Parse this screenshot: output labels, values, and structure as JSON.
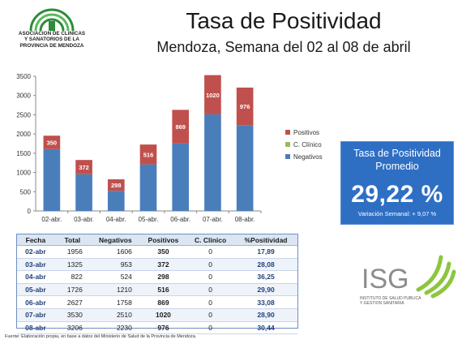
{
  "org": {
    "name_line1": "ASOCIACION DE CLINICAS",
    "name_line2": "Y SANATORIOS DE LA",
    "name_line3": "PROVINCIA DE MENDOZA"
  },
  "header": {
    "title": "Tasa de Positividad",
    "subtitle": "Mendoza, Semana del 02 al 08 de abril"
  },
  "chart_data": {
    "type": "bar",
    "stacked": true,
    "categories": [
      "02-abr.",
      "03-abr.",
      "04-abr.",
      "05-abr.",
      "06-abr.",
      "07-abr.",
      "08-abr."
    ],
    "series": [
      {
        "name": "Negativos",
        "values": [
          1606,
          953,
          524,
          1210,
          1758,
          2510,
          2230
        ],
        "color": "#4a7ebb"
      },
      {
        "name": "C. Clínico",
        "values": [
          0,
          0,
          0,
          0,
          0,
          0,
          0
        ],
        "color": "#9bbb59"
      },
      {
        "name": "Positivos",
        "values": [
          350,
          372,
          298,
          516,
          869,
          1020,
          976
        ],
        "color": "#c0504d"
      }
    ],
    "data_labels": [
      "350",
      "372",
      "298",
      "516",
      "869",
      "1020",
      "976"
    ],
    "yticks": [
      "0",
      "500",
      "1000",
      "1500",
      "2000",
      "2500",
      "3000",
      "3500"
    ],
    "ylim": [
      0,
      3500
    ],
    "grid": false,
    "legend_position": "right",
    "legend_order": [
      "Positivos",
      "C. Clínico",
      "Negativos"
    ]
  },
  "summary": {
    "label": "Tasa de Positividad Promedio",
    "value": "29,22 %",
    "variation": "Variación Semanal: + 9,07 %",
    "bg_color": "#2e6fc4"
  },
  "table": {
    "headers": [
      "Fecha",
      "Total",
      "Negativos",
      "Positivos",
      "C. Clinico",
      "%Positividad"
    ],
    "rows": [
      [
        "02-abr",
        "1956",
        "1606",
        "350",
        "0",
        "17,89"
      ],
      [
        "03-abr",
        "1325",
        "953",
        "372",
        "0",
        "28,08"
      ],
      [
        "04-abr",
        "822",
        "524",
        "298",
        "0",
        "36,25"
      ],
      [
        "05-abr",
        "1726",
        "1210",
        "516",
        "0",
        "29,90"
      ],
      [
        "06-abr",
        "2627",
        "1758",
        "869",
        "0",
        "33,08"
      ],
      [
        "07-abr",
        "3530",
        "2510",
        "1020",
        "0",
        "28,90"
      ],
      [
        "08-abr",
        "3206",
        "2230",
        "976",
        "0",
        "30,44"
      ]
    ]
  },
  "isg": {
    "name": "ISG",
    "line1": "INSTITUTO DE SALUD PUBLICA",
    "line2": "Y GESTION SANITARIA"
  },
  "footer": {
    "source": "Fuente: Elaboración propia, en base a datos del Ministerio de Salud de la Provincia de Mendoza."
  }
}
